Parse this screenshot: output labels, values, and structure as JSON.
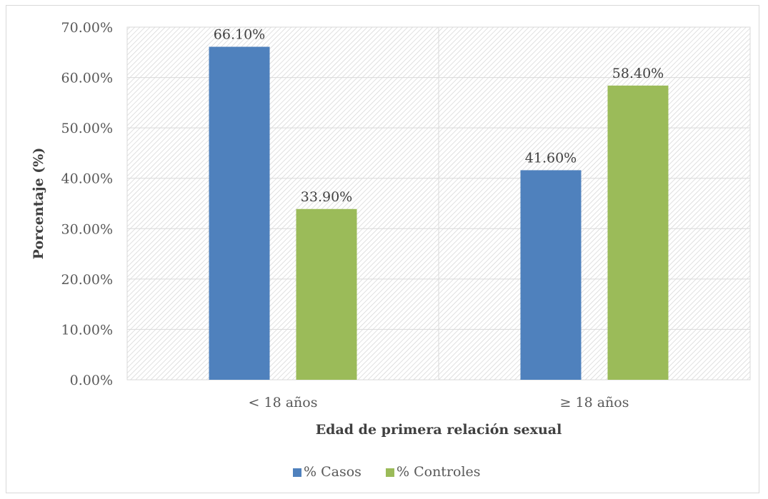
{
  "chart_data": {
    "type": "bar",
    "title": "",
    "xlabel": "Edad de primera relación sexual",
    "ylabel": "Porcentaje (%)",
    "categories": [
      "< 18 años",
      "≥ 18 años"
    ],
    "series": [
      {
        "name": "% Casos",
        "values": [
          66.1,
          41.6
        ],
        "labels": [
          "66.10%",
          "41.60%"
        ],
        "color": "#4f81bd"
      },
      {
        "name": "% Controles",
        "values": [
          33.9,
          58.4
        ],
        "labels": [
          "33.90%",
          "58.40%"
        ],
        "color": "#9bbb59"
      }
    ],
    "ylim": [
      0,
      70
    ],
    "yticks": [
      0,
      10,
      20,
      30,
      40,
      50,
      60,
      70
    ],
    "ytick_labels": [
      "0.00%",
      "10.00%",
      "20.00%",
      "30.00%",
      "40.00%",
      "50.00%",
      "60.00%",
      "70.00%"
    ],
    "grid": true,
    "plot_background": "diagonal hatch",
    "legend_position": "bottom"
  }
}
